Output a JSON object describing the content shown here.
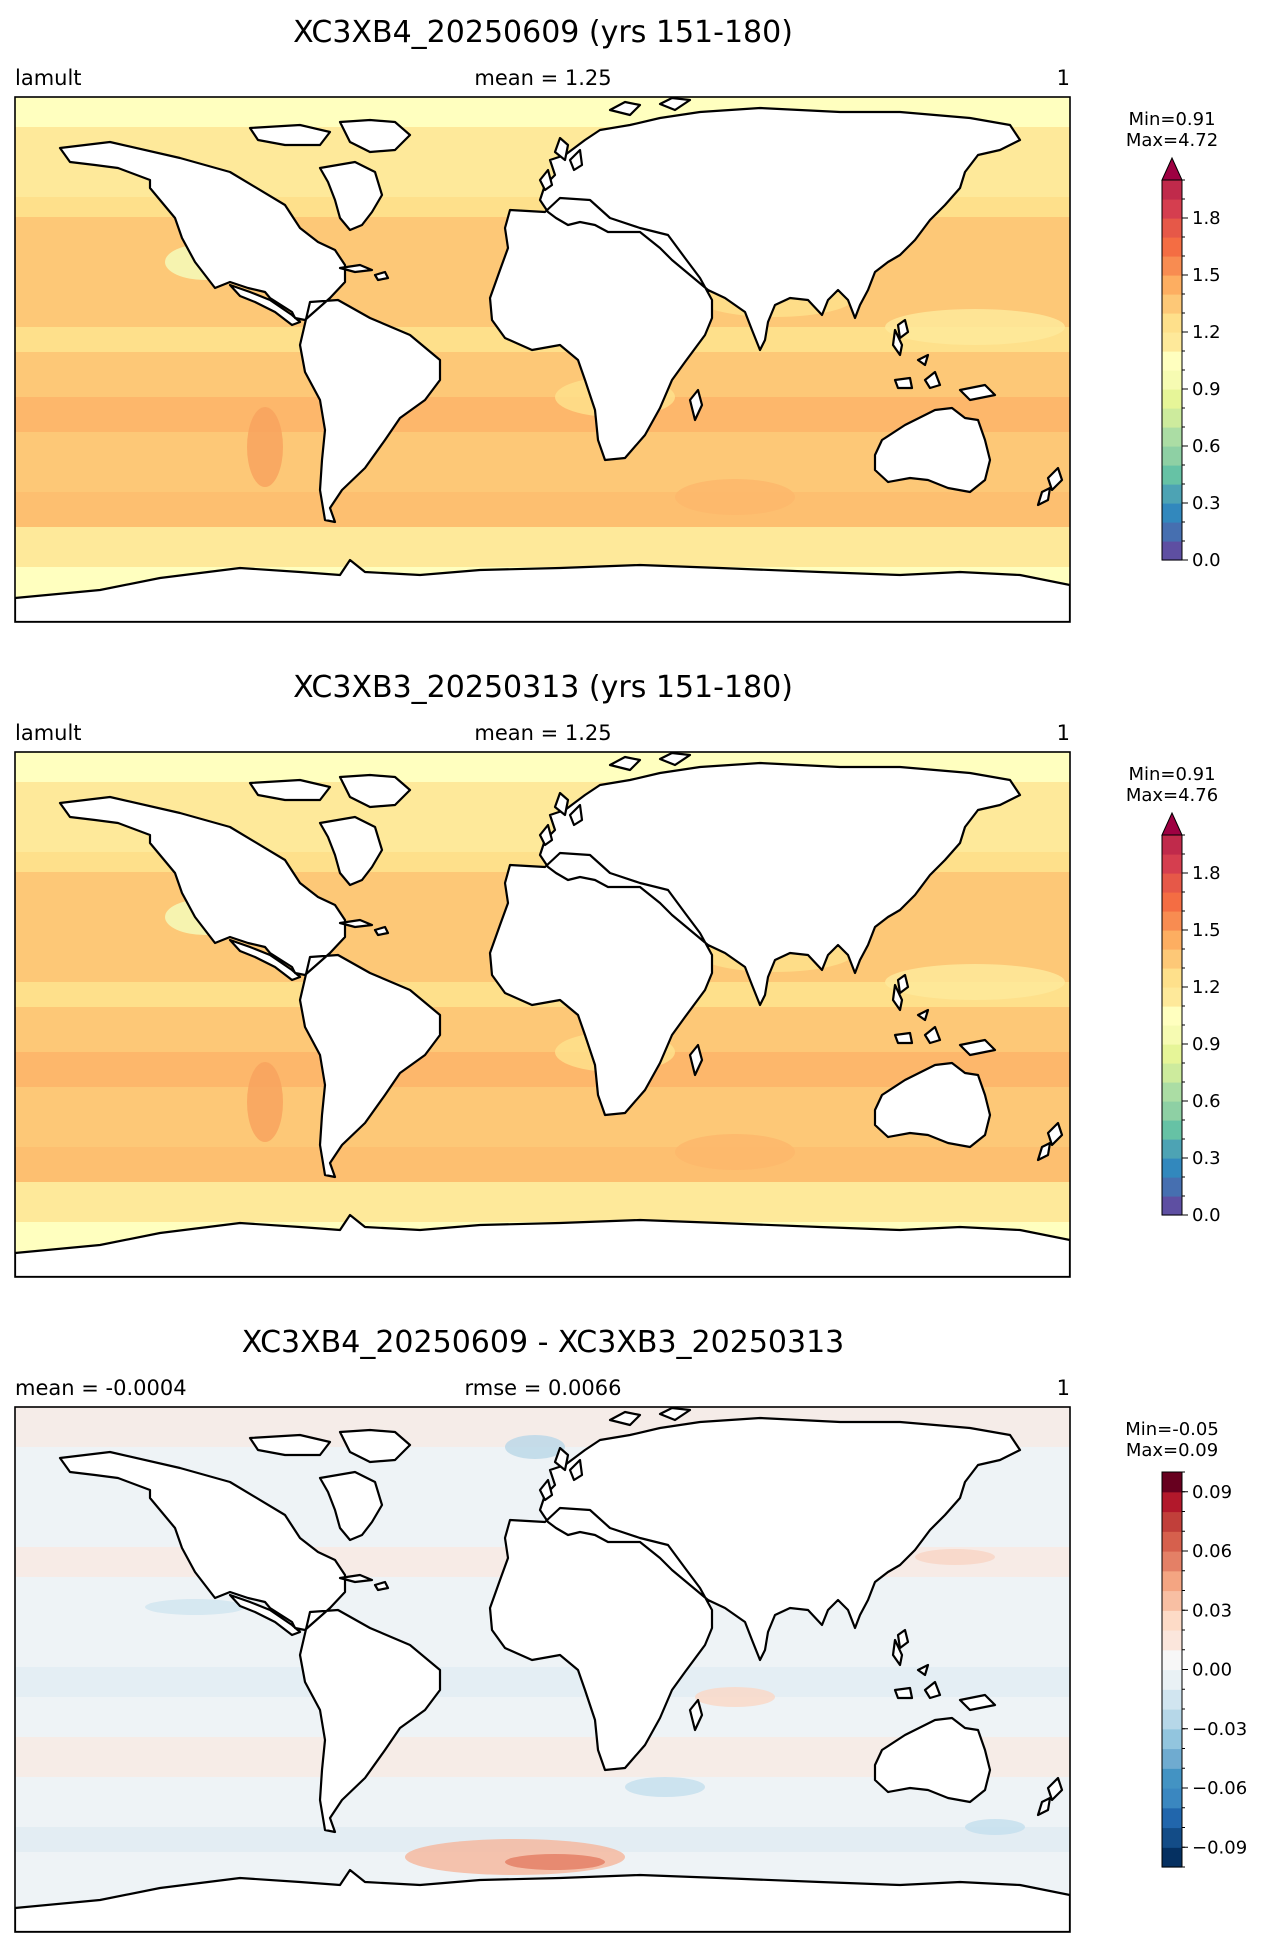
{
  "chart_data": [
    {
      "type": "heatmap",
      "title": "XC3XB4_20250609 (yrs 151-180)",
      "left_label": "lamult",
      "center_label": "mean = 1.25",
      "right_label": "1",
      "colorbar": {
        "minmax_text": [
          "Min=0.91",
          "Max=4.72"
        ],
        "range": [
          0.0,
          2.0
        ],
        "extend": "max",
        "ticks": [
          "0.0",
          "0.3",
          "0.6",
          "0.9",
          "1.2",
          "1.5",
          "1.8"
        ],
        "tick_values": [
          0.0,
          0.3,
          0.6,
          0.9,
          1.2,
          1.5,
          1.8
        ],
        "colors": [
          "#5e4fa2",
          "#466fb0",
          "#3288bd",
          "#4da3b4",
          "#66c2a5",
          "#8ed0a4",
          "#abdda4",
          "#cdeb9d",
          "#e6f598",
          "#f6fbb2",
          "#ffffbf",
          "#fee99a",
          "#fee08b",
          "#fdc877",
          "#fdae61",
          "#f88c51",
          "#f46d43",
          "#e65848",
          "#d53e4f",
          "#c02a4b"
        ],
        "extend_color": "#9e0142"
      }
    },
    {
      "type": "heatmap",
      "title": "XC3XB3_20250313 (yrs 151-180)",
      "left_label": "lamult",
      "center_label": "mean = 1.25",
      "right_label": "1",
      "colorbar": {
        "minmax_text": [
          "Min=0.91",
          "Max=4.76"
        ],
        "range": [
          0.0,
          2.0
        ],
        "extend": "max",
        "ticks": [
          "0.0",
          "0.3",
          "0.6",
          "0.9",
          "1.2",
          "1.5",
          "1.8"
        ],
        "tick_values": [
          0.0,
          0.3,
          0.6,
          0.9,
          1.2,
          1.5,
          1.8
        ],
        "colors": [
          "#5e4fa2",
          "#466fb0",
          "#3288bd",
          "#4da3b4",
          "#66c2a5",
          "#8ed0a4",
          "#abdda4",
          "#cdeb9d",
          "#e6f598",
          "#f6fbb2",
          "#ffffbf",
          "#fee99a",
          "#fee08b",
          "#fdc877",
          "#fdae61",
          "#f88c51",
          "#f46d43",
          "#e65848",
          "#d53e4f",
          "#c02a4b"
        ],
        "extend_color": "#9e0142"
      }
    },
    {
      "type": "heatmap",
      "title": "XC3XB4_20250609 - XC3XB3_20250313",
      "left_label": "mean = -0.0004",
      "center_label": "rmse = 0.0066",
      "right_label": "1",
      "colorbar": {
        "minmax_text": [
          "Min=-0.05",
          "Max=0.09"
        ],
        "range": [
          -0.1,
          0.1
        ],
        "extend": "none",
        "ticks": [
          "−0.09",
          "−0.06",
          "−0.03",
          "0.00",
          "0.03",
          "0.06",
          "0.09"
        ],
        "tick_values": [
          -0.09,
          -0.06,
          -0.03,
          0.0,
          0.03,
          0.06,
          0.09
        ],
        "colors": [
          "#053061",
          "#134c87",
          "#2166ac",
          "#3a87c0",
          "#4393c3",
          "#6fabd0",
          "#92c5de",
          "#b6d7e8",
          "#d1e5f0",
          "#e9f1f5",
          "#f7f7f7",
          "#fbe6dc",
          "#fddbc7",
          "#f8bfa3",
          "#f4a582",
          "#e48066",
          "#d6604d",
          "#c13f3a",
          "#b2182b",
          "#67001f"
        ],
        "extend_color": ""
      }
    }
  ]
}
